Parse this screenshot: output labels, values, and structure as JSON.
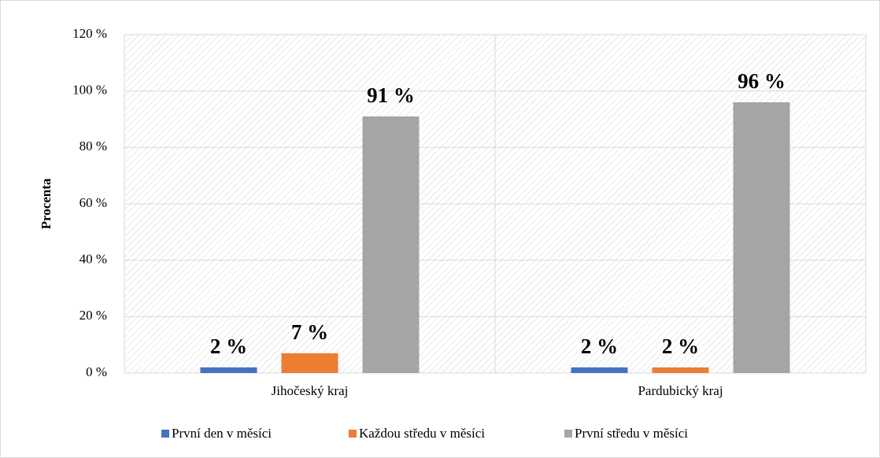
{
  "chart_data": {
    "type": "bar",
    "y_label": "Procenta",
    "categories": [
      "Jihočeský kraj",
      "Pardubický kraj"
    ],
    "series": [
      {
        "name": "První den v měsíci",
        "color": "#4472c4",
        "values": [
          2,
          2
        ],
        "value_labels": [
          "2 %",
          "2 %"
        ]
      },
      {
        "name": "Každou středu v měsíci",
        "color": "#ed7d31",
        "values": [
          7,
          2
        ],
        "value_labels": [
          "7 %",
          "2 %"
        ]
      },
      {
        "name": "První středu v měsíci",
        "color": "#a5a5a5",
        "values": [
          91,
          96
        ],
        "value_labels": [
          "91 %",
          "96 %"
        ]
      }
    ],
    "ylim": [
      0,
      120
    ],
    "yticks": [
      {
        "value": 0,
        "label": "0 %"
      },
      {
        "value": 20,
        "label": "20 %"
      },
      {
        "value": 40,
        "label": "40 %"
      },
      {
        "value": 60,
        "label": "60 %"
      },
      {
        "value": 80,
        "label": "80 %"
      },
      {
        "value": 100,
        "label": "100 %"
      },
      {
        "value": 120,
        "label": "120 %"
      }
    ],
    "grid": true,
    "legend": "bottom"
  }
}
